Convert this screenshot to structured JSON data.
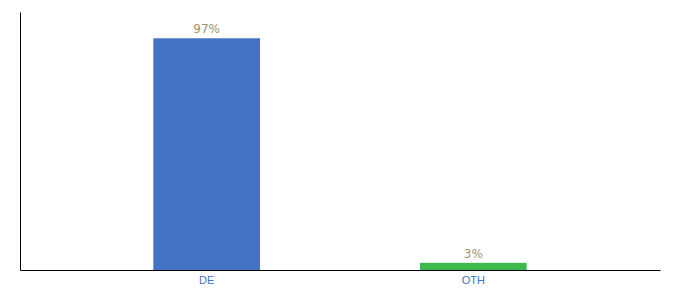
{
  "chart_data": {
    "type": "bar",
    "categories": [
      "DE",
      "OTH"
    ],
    "values": [
      97,
      3
    ],
    "value_labels": [
      "97%",
      "3%"
    ],
    "colors": [
      "#4472c4",
      "#3dba4e"
    ],
    "ylim": [
      0,
      108
    ],
    "data_labels": true,
    "tick_labels": "x",
    "grid": false
  }
}
